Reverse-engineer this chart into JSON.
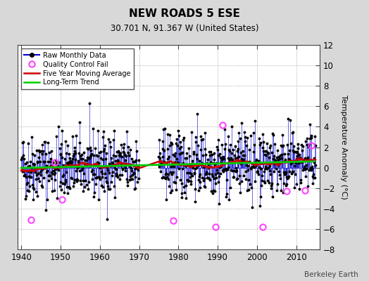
{
  "title": "NEW ROADS 5 ESE",
  "subtitle": "30.701 N, 91.367 W (United States)",
  "ylabel": "Temperature Anomaly (°C)",
  "credit": "Berkeley Earth",
  "year_start": 1940,
  "year_end": 2015,
  "ylim": [
    -8,
    12
  ],
  "yticks": [
    -8,
    -6,
    -4,
    -2,
    0,
    2,
    4,
    6,
    8,
    10,
    12
  ],
  "xticks": [
    1940,
    1950,
    1960,
    1970,
    1980,
    1990,
    2000,
    2010
  ],
  "bg_color": "#d8d8d8",
  "plot_bg_color": "#ffffff",
  "line_color": "#0000cc",
  "dot_color": "#000000",
  "ma_color": "#cc0000",
  "trend_color": "#00cc00",
  "qc_color": "#ff44ff",
  "seed": 42,
  "noise_std": 1.6,
  "trend_slope": 0.008,
  "gap_years": [
    1970,
    1971,
    1972,
    1973,
    1974
  ],
  "qc_fail_times": [
    1942.5,
    1948.5,
    1950.3,
    1978.7,
    1989.5,
    1991.2,
    2001.5,
    2007.5,
    2012.3,
    2013.8
  ],
  "qc_fail_values": [
    -5.1,
    0.5,
    -3.1,
    -5.2,
    -5.8,
    4.2,
    -5.8,
    -2.3,
    -2.2,
    2.2
  ]
}
